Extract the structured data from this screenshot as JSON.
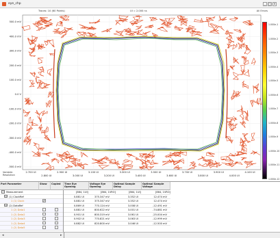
{
  "window": {
    "title": "eye_chp",
    "minimize_label": "_",
    "maximize_label": "□",
    "close_label": "×"
  },
  "plot": {
    "header_left": "Traces: 10 (60 Points)",
    "header_center": "UI = 2.000 ns",
    "header_right": "All Errors",
    "y_ticks": [
      "500.0 mV",
      "400.0 mV",
      "300.0 mV",
      "200.0 mV",
      "100.0 mV",
      "0.0 V",
      "-100.0 mV",
      "-200.0 mV",
      "-300.0 mV",
      "-400.0 mV",
      "-500.0 mV"
    ],
    "x_ticks": [
      "2.700 UI",
      "2.800 UI",
      "2.900 UI",
      "3.000 UI",
      "3.100 UI",
      "3.200 UI",
      "3.300 UI",
      "3.400 UI",
      "3.500 UI",
      "3.600 UI",
      "3.700 UI",
      "3.800 UI",
      "3.900 UI",
      "4.000 UI",
      "4.100 UI"
    ],
    "x_axis_caption_1": "Variable:",
    "x_axis_caption_2": "Resolution",
    "colorbar_labels": [
      "1.000e-1",
      "1.000e-2",
      "1.000e-3",
      "1.000e-4",
      "1.000e-5",
      "1.000e-6",
      "1.000e-7",
      "1.000e-8",
      "1.000e-9",
      "1.000e-10",
      "1.000e-11",
      "1.000e-12"
    ],
    "colors": {
      "contour": "#e2552c",
      "contour_dark": "#c73a1a",
      "eye_blue": "#4a4ad0",
      "eye_yellow": "#d8d020",
      "eye_green": "#4aa84a",
      "eye_black": "#222222"
    }
  },
  "table": {
    "headers": {
      "port": "Port Parameter",
      "show": "Show",
      "copied": "Copied",
      "time_eye": "Time Eye Opening",
      "voltage_eye": "Voltage Eye Opening",
      "optimal_delay": "Optimal Sample Delay",
      "optimal_voltage": "Optimal Sample Voltage"
    },
    "units_row": {
      "time": "[864, 1UI]",
      "voltage": "[864, 1VRO]",
      "delay": "[864, 1UI]",
      "volt": "[864, 1VRO]"
    },
    "tree": {
      "measurement": "Measurement",
      "group_a": "(1) ClockRef",
      "group_a_child": "1 (1) Clock",
      "group_b": "(2) DataRef",
      "children": [
        "1 (2) Data1",
        "1 (2) Data2",
        "1 (2) Data3",
        "1 (2) Data4",
        "1 (2) Data5"
      ],
      "checked_mark": "✔",
      "expand_mark": "−"
    },
    "rows": [
      {
        "time": "0.881 UI",
        "voltage": "375.347 mV",
        "delay": "3.352 UI",
        "volt": "12.474 mV"
      },
      {
        "time": "0.881 UI",
        "voltage": "375.347 mV",
        "delay": "3.352 UI",
        "volt": "12.474 mV"
      },
      {
        "time": "0.869 UI",
        "voltage": "770.124 mV",
        "delay": "3.008 UI",
        "volt": "-12.491 mV"
      },
      {
        "time": "0.881 UI",
        "voltage": "800.622 mV",
        "delay": "3.001 UI",
        "volt": "-74.881 mV"
      },
      {
        "time": "0.901 UI",
        "voltage": "800.319 mV",
        "delay": "3.061 UI",
        "volt": "-25.004 mV"
      },
      {
        "time": "0.902 UI",
        "voltage": "770.821 mV",
        "delay": "3.063 UI",
        "volt": "-12.999 mV"
      },
      {
        "time": "0.882 UI",
        "voltage": "820.800 mV",
        "delay": "3.046 UI",
        "volt": "-12.500 mV"
      }
    ]
  },
  "statusbar": {
    "left_arrow": "◂",
    "right_arrow": "▸"
  }
}
